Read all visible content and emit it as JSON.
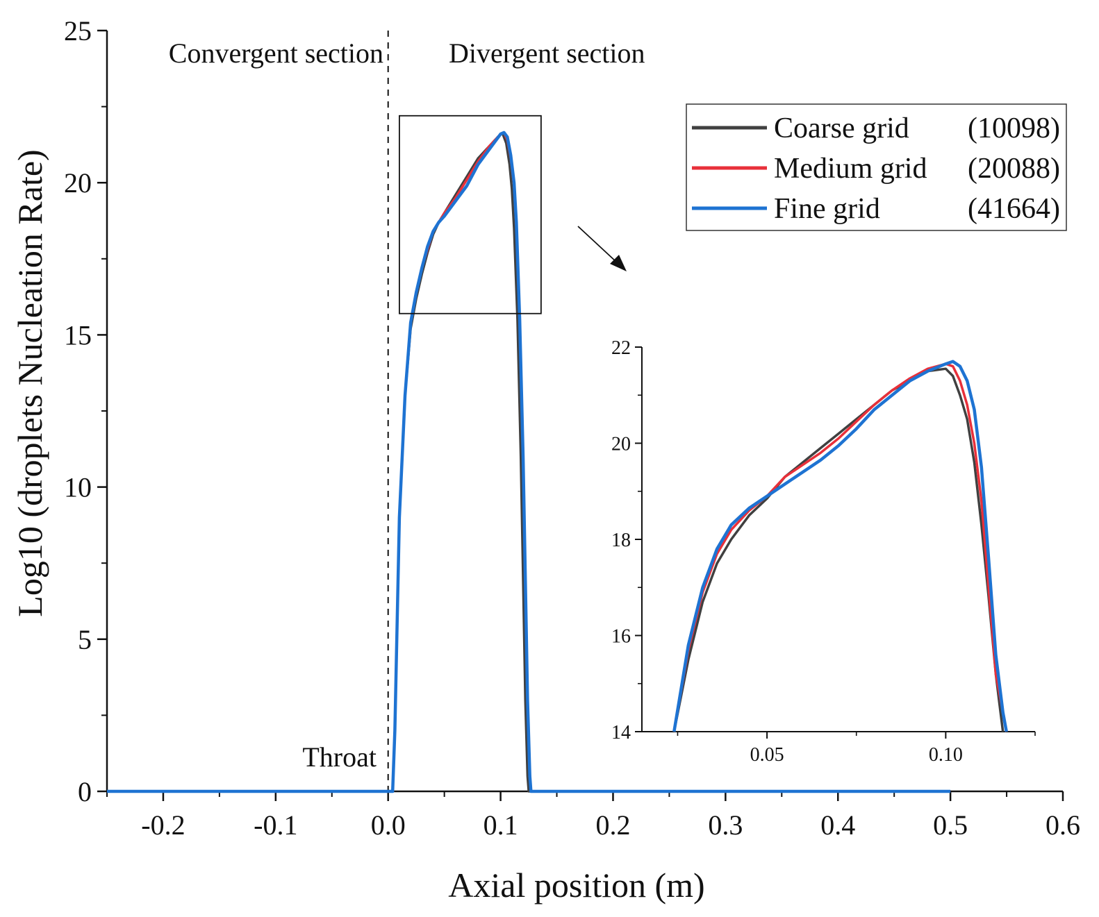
{
  "chart_data": [
    {
      "type": "line",
      "name": "main",
      "xlabel": "Axial position (m)",
      "ylabel": "Log10 (droplets Nucleation Rate)",
      "xlim": [
        -0.25,
        0.6
      ],
      "ylim": [
        0,
        25
      ],
      "x_ticks": [
        -0.2,
        -0.1,
        0.0,
        0.1,
        0.2,
        0.3,
        0.4,
        0.5,
        0.6
      ],
      "x_tick_labels": [
        "-0.2",
        "-0.1",
        "0.0",
        "0.1",
        "0.2",
        "0.3",
        "0.4",
        "0.5",
        "0.6"
      ],
      "y_ticks": [
        0,
        5,
        10,
        15,
        20,
        25
      ],
      "y_tick_labels": [
        "0",
        "5",
        "10",
        "15",
        "20",
        "25"
      ],
      "annotations": {
        "convergent": "Convergent section",
        "divergent": "Divergent section",
        "throat": "Throat",
        "throat_x": 0.0
      },
      "zoom_box": {
        "x": [
          0.01,
          0.136
        ],
        "y": [
          15.7,
          22.2
        ]
      },
      "legend": {
        "placement": "top-right",
        "entries": [
          {
            "label": "Coarse grid",
            "count": "(10098)"
          },
          {
            "label": "Medium grid",
            "count": "(20088)"
          },
          {
            "label": "Fine grid",
            "count": "(41664)"
          }
        ]
      },
      "series": [
        {
          "name": "Coarse grid (10098)",
          "color": "#404040",
          "x": [
            -0.25,
            0.0,
            0.004,
            0.006,
            0.01,
            0.015,
            0.02,
            0.025,
            0.03,
            0.035,
            0.04,
            0.045,
            0.05,
            0.06,
            0.07,
            0.08,
            0.09,
            0.1,
            0.102,
            0.105,
            0.108,
            0.11,
            0.112,
            0.115,
            0.118,
            0.12,
            0.122,
            0.124,
            0.125,
            0.5
          ],
          "y": [
            0,
            0,
            0,
            2,
            9,
            13,
            15.2,
            16.2,
            17.0,
            17.7,
            18.3,
            18.7,
            19.0,
            19.6,
            20.2,
            20.8,
            21.2,
            21.6,
            21.6,
            21.3,
            20.6,
            19.8,
            18.5,
            15.5,
            11,
            7,
            3,
            0.5,
            0,
            0
          ]
        },
        {
          "name": "Medium grid (20088)",
          "color": "#e8303a",
          "x": [
            -0.25,
            0.0,
            0.004,
            0.006,
            0.01,
            0.015,
            0.02,
            0.025,
            0.03,
            0.035,
            0.04,
            0.045,
            0.05,
            0.06,
            0.07,
            0.08,
            0.09,
            0.1,
            0.103,
            0.106,
            0.109,
            0.112,
            0.114,
            0.117,
            0.12,
            0.122,
            0.124,
            0.126,
            0.127,
            0.5
          ],
          "y": [
            0,
            0,
            0,
            2,
            9,
            13,
            15.4,
            16.4,
            17.2,
            17.8,
            18.4,
            18.7,
            19.0,
            19.5,
            20.1,
            20.7,
            21.2,
            21.6,
            21.65,
            21.4,
            20.8,
            19.9,
            18.6,
            15.5,
            11,
            7,
            3,
            0.5,
            0,
            0
          ]
        },
        {
          "name": "Fine grid (41664)",
          "color": "#1e73d2",
          "x": [
            -0.25,
            0.0,
            0.004,
            0.006,
            0.01,
            0.015,
            0.02,
            0.025,
            0.03,
            0.035,
            0.04,
            0.045,
            0.05,
            0.06,
            0.07,
            0.08,
            0.09,
            0.1,
            0.103,
            0.106,
            0.109,
            0.112,
            0.114,
            0.117,
            0.12,
            0.122,
            0.124,
            0.126,
            0.127,
            0.5
          ],
          "y": [
            0,
            0,
            0,
            2,
            9,
            13,
            15.4,
            16.4,
            17.2,
            17.9,
            18.4,
            18.7,
            18.9,
            19.4,
            19.9,
            20.6,
            21.1,
            21.6,
            21.65,
            21.5,
            20.9,
            20.0,
            18.7,
            15.5,
            11,
            7,
            3,
            0.5,
            0,
            0
          ]
        }
      ]
    },
    {
      "type": "line",
      "name": "inset",
      "xlim": [
        0.015,
        0.125
      ],
      "ylim": [
        14,
        22
      ],
      "x_ticks": [
        0.05,
        0.1
      ],
      "x_tick_labels": [
        "0.05",
        "0.10"
      ],
      "y_ticks": [
        14,
        16,
        18,
        20,
        22
      ],
      "y_tick_labels": [
        "14",
        "16",
        "18",
        "20",
        "22"
      ],
      "series": [
        {
          "name": "Coarse grid (10098)",
          "color": "#404040",
          "x": [
            0.024,
            0.028,
            0.032,
            0.036,
            0.04,
            0.045,
            0.05,
            0.055,
            0.06,
            0.065,
            0.07,
            0.075,
            0.08,
            0.085,
            0.09,
            0.095,
            0.1,
            0.102,
            0.104,
            0.106,
            0.108,
            0.11,
            0.112,
            0.114,
            0.115,
            0.116
          ],
          "y": [
            14,
            15.5,
            16.7,
            17.5,
            18.0,
            18.5,
            18.85,
            19.3,
            19.6,
            19.9,
            20.2,
            20.5,
            20.8,
            21.1,
            21.3,
            21.5,
            21.55,
            21.4,
            21.0,
            20.5,
            19.6,
            18.3,
            16.8,
            15.2,
            14.6,
            14.0
          ]
        },
        {
          "name": "Medium grid (20088)",
          "color": "#e8303a",
          "x": [
            0.024,
            0.028,
            0.032,
            0.036,
            0.04,
            0.045,
            0.05,
            0.055,
            0.06,
            0.065,
            0.07,
            0.075,
            0.08,
            0.085,
            0.09,
            0.095,
            0.1,
            0.102,
            0.104,
            0.106,
            0.108,
            0.11,
            0.112,
            0.114,
            0.116,
            0.117
          ],
          "y": [
            14,
            15.7,
            16.9,
            17.7,
            18.2,
            18.6,
            18.9,
            19.3,
            19.55,
            19.8,
            20.1,
            20.45,
            20.8,
            21.1,
            21.35,
            21.55,
            21.65,
            21.6,
            21.3,
            20.8,
            20.0,
            18.8,
            17.0,
            15.2,
            14.4,
            14.0
          ]
        },
        {
          "name": "Fine grid (41664)",
          "color": "#1e73d2",
          "x": [
            0.024,
            0.028,
            0.032,
            0.036,
            0.04,
            0.045,
            0.05,
            0.055,
            0.06,
            0.065,
            0.07,
            0.075,
            0.08,
            0.085,
            0.09,
            0.095,
            0.1,
            0.102,
            0.104,
            0.106,
            0.108,
            0.11,
            0.112,
            0.114,
            0.116,
            0.117
          ],
          "y": [
            14,
            15.8,
            17.0,
            17.8,
            18.3,
            18.65,
            18.9,
            19.15,
            19.4,
            19.65,
            19.95,
            20.3,
            20.7,
            21.0,
            21.3,
            21.5,
            21.65,
            21.7,
            21.6,
            21.3,
            20.7,
            19.5,
            17.6,
            15.6,
            14.4,
            14.0
          ]
        }
      ]
    }
  ]
}
